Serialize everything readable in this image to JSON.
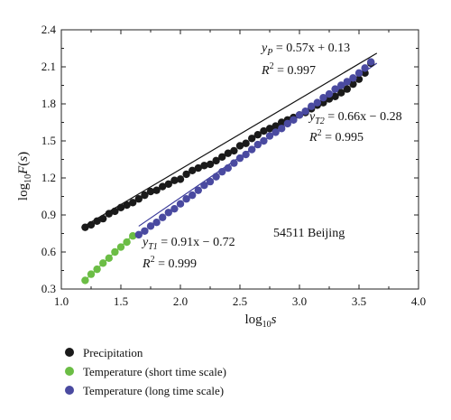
{
  "chart_data": {
    "type": "scatter",
    "title": "",
    "xlabel": "log10s",
    "ylabel": "log10F(s)",
    "xlim": [
      1.0,
      4.0
    ],
    "ylim": [
      0.3,
      2.4
    ],
    "xticks": [
      "1.0",
      "1.5",
      "2.0",
      "2.5",
      "3.0",
      "3.5",
      "4.0"
    ],
    "yticks": [
      "0.3",
      "0.6",
      "0.9",
      "1.2",
      "1.5",
      "1.8",
      "2.1",
      "2.4"
    ],
    "grid": false,
    "legend_position": "below",
    "station_label": "54511 Beijing",
    "series": [
      {
        "name": "Precipitation",
        "color": "#1a1a1a",
        "x": [
          1.2,
          1.25,
          1.3,
          1.35,
          1.4,
          1.45,
          1.5,
          1.55,
          1.6,
          1.65,
          1.7,
          1.75,
          1.8,
          1.85,
          1.9,
          1.95,
          2.0,
          2.05,
          2.1,
          2.15,
          2.2,
          2.25,
          2.3,
          2.35,
          2.4,
          2.45,
          2.5,
          2.55,
          2.6,
          2.65,
          2.7,
          2.75,
          2.8,
          2.85,
          2.9,
          2.95,
          3.0,
          3.05,
          3.1,
          3.15,
          3.2,
          3.25,
          3.3,
          3.35,
          3.4,
          3.45,
          3.5,
          3.55,
          3.6
        ],
        "y": [
          0.8,
          0.82,
          0.85,
          0.87,
          0.91,
          0.93,
          0.96,
          0.98,
          1.0,
          1.03,
          1.06,
          1.09,
          1.1,
          1.13,
          1.15,
          1.18,
          1.19,
          1.23,
          1.26,
          1.28,
          1.3,
          1.31,
          1.34,
          1.37,
          1.4,
          1.42,
          1.46,
          1.48,
          1.52,
          1.55,
          1.58,
          1.6,
          1.62,
          1.65,
          1.67,
          1.69,
          1.71,
          1.73,
          1.76,
          1.79,
          1.81,
          1.84,
          1.86,
          1.89,
          1.92,
          1.96,
          2.0,
          2.05,
          2.13
        ]
      },
      {
        "name": "Temperature (short time scale)",
        "color": "#6bbd45",
        "x": [
          1.2,
          1.25,
          1.3,
          1.35,
          1.4,
          1.45,
          1.5,
          1.55,
          1.6
        ],
        "y": [
          0.37,
          0.42,
          0.46,
          0.51,
          0.55,
          0.6,
          0.64,
          0.68,
          0.73
        ]
      },
      {
        "name": "Temperature (long time scale)",
        "color": "#4a4aa0",
        "x": [
          1.65,
          1.7,
          1.75,
          1.8,
          1.85,
          1.9,
          1.95,
          2.0,
          2.05,
          2.1,
          2.15,
          2.2,
          2.25,
          2.3,
          2.35,
          2.4,
          2.45,
          2.5,
          2.55,
          2.6,
          2.65,
          2.7,
          2.75,
          2.8,
          2.85,
          2.9,
          2.95,
          3.0,
          3.05,
          3.1,
          3.15,
          3.2,
          3.25,
          3.3,
          3.35,
          3.4,
          3.45,
          3.5,
          3.55,
          3.6
        ],
        "y": [
          0.74,
          0.77,
          0.81,
          0.84,
          0.88,
          0.92,
          0.95,
          0.99,
          1.03,
          1.06,
          1.1,
          1.14,
          1.17,
          1.21,
          1.25,
          1.28,
          1.32,
          1.36,
          1.39,
          1.43,
          1.47,
          1.5,
          1.54,
          1.57,
          1.6,
          1.64,
          1.67,
          1.71,
          1.74,
          1.78,
          1.81,
          1.85,
          1.88,
          1.92,
          1.95,
          1.98,
          2.01,
          2.05,
          2.09,
          2.14
        ]
      }
    ],
    "fit_lines": [
      {
        "name": "P",
        "slope": 0.57,
        "intercept": 0.13,
        "x_range": [
          1.2,
          3.65
        ],
        "color": "#111111"
      },
      {
        "name": "T1",
        "slope": 0.91,
        "intercept": -0.72,
        "x_range": [
          1.2,
          1.6
        ],
        "color": "#6bbd45"
      },
      {
        "name": "T2",
        "slope": 0.66,
        "intercept": -0.28,
        "x_range": [
          1.65,
          3.65
        ],
        "color": "#3a3a9a"
      }
    ],
    "annotations": {
      "p_eq": {
        "sym": "y",
        "sub": "P",
        "rest": " = 0.57x + 0.13"
      },
      "p_r2": {
        "sym": "R",
        "sup": "2",
        "rest": " = 0.997"
      },
      "t2_eq": {
        "sym": "y",
        "sub": "T2",
        "rest": " = 0.66x − 0.28"
      },
      "t2_r2": {
        "sym": "R",
        "sup": "2",
        "rest": " = 0.995"
      },
      "t1_eq": {
        "sym": "y",
        "sub": "T1",
        "rest": " = 0.91x − 0.72"
      },
      "t1_r2": {
        "sym": "R",
        "sup": "2",
        "rest": " = 0.999"
      }
    }
  }
}
